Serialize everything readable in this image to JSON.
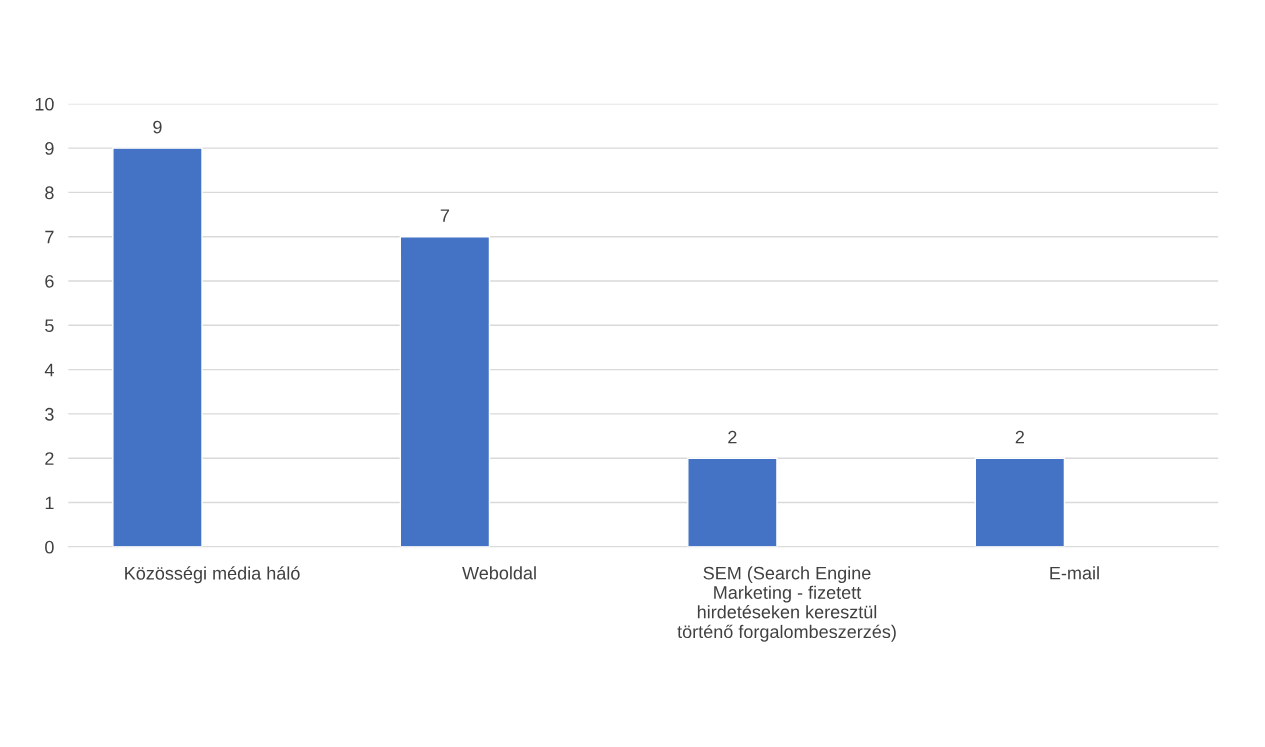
{
  "chart_data": {
    "type": "bar",
    "categories": [
      "Közösségi média háló",
      "Weboldal",
      "SEM (Search Engine Marketing - fizetett hirdetéseken keresztül történő forgalombeszerzés)",
      "E-mail"
    ],
    "values": [
      9,
      7,
      2,
      2
    ],
    "color": "#4472c4",
    "ylim": [
      0,
      10
    ],
    "yticks": [
      0,
      1,
      2,
      3,
      4,
      5,
      6,
      7,
      8,
      9,
      10
    ],
    "grid": "y",
    "data_labels": true
  }
}
